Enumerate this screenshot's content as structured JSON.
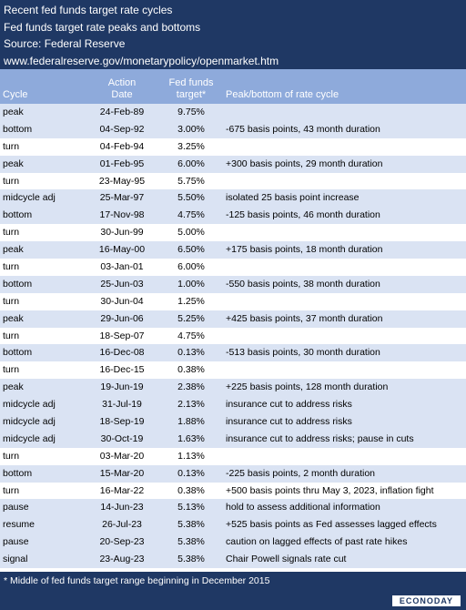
{
  "header": {
    "lines": [
      "Recent fed funds target rate cycles",
      "Fed funds target rate peaks and bottoms",
      "Source: Federal Reserve",
      "www.federalreserve.gov/monetarypolicy/openmarket.htm"
    ]
  },
  "table": {
    "columns": [
      "Cycle",
      "Action Date",
      "Fed funds target*",
      "Peak/bottom of rate cycle"
    ],
    "rows": [
      [
        "peak",
        "24-Feb-89",
        "9.75%"
      ],
      [
        "bottom",
        "04-Sep-92",
        "3.00%",
        "-675 basis points, 43 month duration"
      ],
      [
        "turn",
        "04-Feb-94",
        "3.25%"
      ],
      [
        "peak",
        "01-Feb-95",
        "6.00%",
        "+300 basis points, 29 month duration"
      ],
      [
        "turn",
        "23-May-95",
        "5.75%"
      ],
      [
        "midcycle adj",
        "25-Mar-97",
        "5.50%",
        "isolated 25 basis point increase"
      ],
      [
        "bottom",
        "17-Nov-98",
        "4.75%",
        "-125 basis points, 46 month duration"
      ],
      [
        "turn",
        "30-Jun-99",
        "5.00%"
      ],
      [
        "peak",
        "16-May-00",
        "6.50%",
        "+175 basis points, 18 month duration"
      ],
      [
        "turn",
        "03-Jan-01",
        "6.00%"
      ],
      [
        "bottom",
        "25-Jun-03",
        "1.00%",
        "-550 basis points, 38 month duration"
      ],
      [
        "turn",
        "30-Jun-04",
        "1.25%"
      ],
      [
        "peak",
        "29-Jun-06",
        "5.25%",
        "+425 basis points, 37 month duration"
      ],
      [
        "turn",
        "18-Sep-07",
        "4.75%"
      ],
      [
        "bottom",
        "16-Dec-08",
        "0.13%",
        "-513 basis points, 30 month duration"
      ],
      [
        "turn",
        "16-Dec-15",
        "0.38%"
      ],
      [
        "peak",
        "19-Jun-19",
        "2.38%",
        "+225 basis points, 128 month duration"
      ],
      [
        "midcycle adj",
        "31-Jul-19",
        "2.13%",
        "insurance cut to address risks"
      ],
      [
        "midcycle adj",
        "18-Sep-19",
        "1.88%",
        "insurance cut to address risks"
      ],
      [
        "midcycle adj",
        "30-Oct-19",
        "1.63%",
        "insurance cut to address risks; pause in cuts"
      ],
      [
        "turn",
        "03-Mar-20",
        "1.13%"
      ],
      [
        "bottom",
        "15-Mar-20",
        "0.13%",
        "-225 basis points, 2 month duration"
      ],
      [
        "turn",
        "16-Mar-22",
        "0.38%",
        "+500 basis points thru May 3, 2023, inflation fight"
      ],
      [
        "pause",
        "14-Jun-23",
        "5.13%",
        "hold to assess additional information"
      ],
      [
        "resume",
        "26-Jul-23",
        "5.38%",
        "+525 basis points as Fed assesses lagged effects"
      ],
      [
        "pause",
        "20-Sep-23",
        "5.38%",
        "caution on lagged effects of past rate hikes"
      ],
      [
        "signal",
        "23-Aug-23",
        "5.38%",
        "Chair Powell signals rate cut"
      ]
    ]
  },
  "footer": {
    "note": "* Middle of fed funds target range beginning in December 2015",
    "logo": "ECONODAY"
  }
}
